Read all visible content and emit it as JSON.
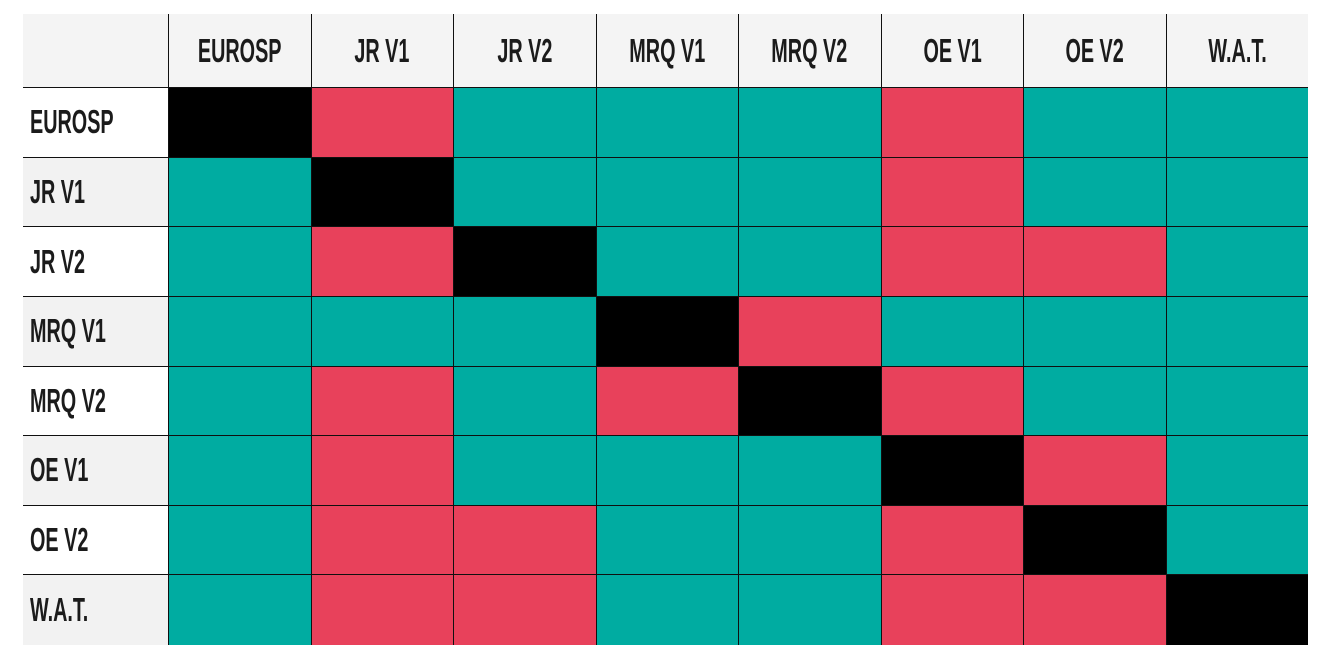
{
  "page": {
    "background": "#ffffff"
  },
  "chart_data": {
    "type": "heatmap",
    "title": "",
    "labels": [
      "EUROSP",
      "JR V1",
      "JR V2",
      "MRQ V1",
      "MRQ V2",
      "OE V1",
      "OE V2",
      "W.A.T."
    ],
    "matrix": [
      [
        "self",
        "red",
        "teal",
        "teal",
        "teal",
        "red",
        "teal",
        "teal"
      ],
      [
        "teal",
        "self",
        "teal",
        "teal",
        "teal",
        "red",
        "teal",
        "teal"
      ],
      [
        "teal",
        "red",
        "self",
        "teal",
        "teal",
        "red",
        "red",
        "teal"
      ],
      [
        "teal",
        "teal",
        "teal",
        "self",
        "red",
        "teal",
        "teal",
        "teal"
      ],
      [
        "teal",
        "red",
        "teal",
        "red",
        "self",
        "red",
        "teal",
        "teal"
      ],
      [
        "teal",
        "red",
        "teal",
        "teal",
        "teal",
        "self",
        "red",
        "teal"
      ],
      [
        "teal",
        "red",
        "red",
        "teal",
        "teal",
        "red",
        "self",
        "teal"
      ],
      [
        "teal",
        "red",
        "red",
        "teal",
        "teal",
        "red",
        "red",
        "self"
      ]
    ],
    "palette": {
      "self": "#000000",
      "red": "#E8415B",
      "teal": "#00ACA1"
    },
    "styles": {
      "header_bg": "#f4f4f4",
      "row_label_bg": "#ffffff",
      "row_label_bg_alt": "#f2f2f2",
      "grid_line": "#101010",
      "text": "#1b1b1b"
    },
    "layout": {
      "legend": "none",
      "grid": "on",
      "row_count": 8,
      "col_count": 8
    }
  }
}
